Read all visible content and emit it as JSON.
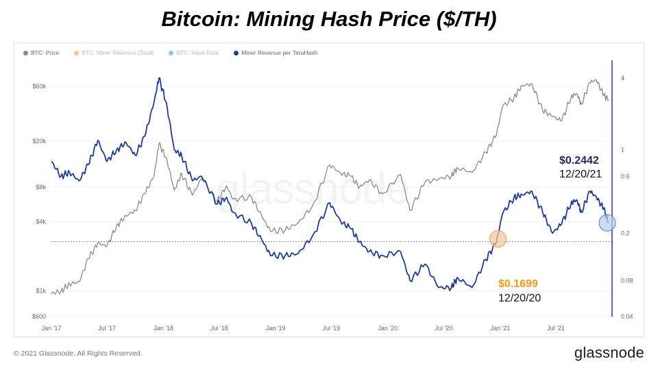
{
  "title": "Bitcoin: Mining Hash Price ($/TH)",
  "legend": [
    {
      "label": "BTC: Price",
      "color": "#8a8a8a",
      "faded": false
    },
    {
      "label": "BTC: Miner Revenue (Total)",
      "color": "#f7931a",
      "faded": true
    },
    {
      "label": "BTC: Hash Rate",
      "color": "#2f8ee6",
      "faded": true
    },
    {
      "label": "Miner Revenue per TeraHash",
      "color": "#1f3a93",
      "faded": false
    }
  ],
  "watermark": "glassnode",
  "copyright": "© 2021 Glassnode. All Rights Reserved.",
  "brand": "glassnode",
  "annotations": {
    "end_value": "$0.2442",
    "end_date": "12/20/21",
    "start_value": "$0.1699",
    "start_date": "12/20/20",
    "end_color": "#1f2a5a",
    "start_color": "#f29a1f"
  },
  "chart_data": {
    "type": "line",
    "x_ticks": [
      "Jan '17",
      "Jul '17",
      "Jan '18",
      "Jul '18",
      "Jan '19",
      "Jul '19",
      "Jan '20",
      "Jul '20",
      "Jan '21",
      "Jul '21"
    ],
    "x_range": [
      "2017-01-01",
      "2021-12-31"
    ],
    "y_left": {
      "scale": "log",
      "ticks": [
        "$60k",
        "$20k",
        "$8k",
        "$4k",
        "$1k",
        "$600"
      ],
      "range": [
        600,
        80000
      ]
    },
    "y_right": {
      "scale": "log",
      "ticks": [
        "4",
        "1",
        "0.6",
        "0.2",
        "0.08",
        "0.04"
      ],
      "range": [
        0.04,
        4.5
      ]
    },
    "reference_line_value": 0.1699,
    "series": [
      {
        "name": "BTC: Price",
        "axis": "left",
        "color": "#8a8a8a",
        "points": [
          [
            "2017-01-01",
            950
          ],
          [
            "2017-02-01",
            1000
          ],
          [
            "2017-03-01",
            1150
          ],
          [
            "2017-04-01",
            1200
          ],
          [
            "2017-05-01",
            1900
          ],
          [
            "2017-06-01",
            2600
          ],
          [
            "2017-07-01",
            2450
          ],
          [
            "2017-08-01",
            3700
          ],
          [
            "2017-09-01",
            4500
          ],
          [
            "2017-10-01",
            5000
          ],
          [
            "2017-11-01",
            7000
          ],
          [
            "2017-12-01",
            10000
          ],
          [
            "2017-12-17",
            19000
          ],
          [
            "2018-01-10",
            14500
          ],
          [
            "2018-02-05",
            7500
          ],
          [
            "2018-03-01",
            10500
          ],
          [
            "2018-04-05",
            6800
          ],
          [
            "2018-05-05",
            9500
          ],
          [
            "2018-06-25",
            6000
          ],
          [
            "2018-07-25",
            8200
          ],
          [
            "2018-08-15",
            6300
          ],
          [
            "2018-10-15",
            6500
          ],
          [
            "2018-11-20",
            4300
          ],
          [
            "2018-12-15",
            3300
          ],
          [
            "2019-02-01",
            3400
          ],
          [
            "2019-03-15",
            3900
          ],
          [
            "2019-05-01",
            5500
          ],
          [
            "2019-06-26",
            12500
          ],
          [
            "2019-08-01",
            10500
          ],
          [
            "2019-09-01",
            10000
          ],
          [
            "2019-10-01",
            8000
          ],
          [
            "2019-11-01",
            9200
          ],
          [
            "2019-12-15",
            7000
          ],
          [
            "2020-02-12",
            10300
          ],
          [
            "2020-03-13",
            5000
          ],
          [
            "2020-05-01",
            8800
          ],
          [
            "2020-06-15",
            9400
          ],
          [
            "2020-07-26",
            10000
          ],
          [
            "2020-08-15",
            11800
          ],
          [
            "2020-10-01",
            10700
          ],
          [
            "2020-11-15",
            16000
          ],
          [
            "2020-12-20",
            23000
          ],
          [
            "2021-01-08",
            40000
          ],
          [
            "2021-02-15",
            48000
          ],
          [
            "2021-03-13",
            61000
          ],
          [
            "2021-04-14",
            63000
          ],
          [
            "2021-05-19",
            37000
          ],
          [
            "2021-06-20",
            33000
          ],
          [
            "2021-07-20",
            30000
          ],
          [
            "2021-08-20",
            49000
          ],
          [
            "2021-09-07",
            52000
          ],
          [
            "2021-09-22",
            42000
          ],
          [
            "2021-10-20",
            65000
          ],
          [
            "2021-11-10",
            68000
          ],
          [
            "2021-12-04",
            50000
          ],
          [
            "2021-12-20",
            46000
          ]
        ]
      },
      {
        "name": "Miner Revenue per TeraHash",
        "axis": "right",
        "color": "#1f3a93",
        "points": [
          [
            "2017-01-01",
            0.8
          ],
          [
            "2017-02-01",
            0.6
          ],
          [
            "2017-03-01",
            0.65
          ],
          [
            "2017-04-01",
            0.55
          ],
          [
            "2017-05-01",
            0.75
          ],
          [
            "2017-06-01",
            1.2
          ],
          [
            "2017-07-01",
            0.8
          ],
          [
            "2017-08-01",
            1.0
          ],
          [
            "2017-09-01",
            1.15
          ],
          [
            "2017-10-01",
            0.9
          ],
          [
            "2017-11-01",
            1.3
          ],
          [
            "2017-12-01",
            2.5
          ],
          [
            "2017-12-17",
            4.0
          ],
          [
            "2018-01-10",
            2.5
          ],
          [
            "2018-02-05",
            1.0
          ],
          [
            "2018-03-01",
            0.9
          ],
          [
            "2018-04-05",
            0.55
          ],
          [
            "2018-05-05",
            0.6
          ],
          [
            "2018-06-25",
            0.35
          ],
          [
            "2018-07-25",
            0.4
          ],
          [
            "2018-08-15",
            0.3
          ],
          [
            "2018-10-15",
            0.24
          ],
          [
            "2018-11-20",
            0.17
          ],
          [
            "2018-12-15",
            0.13
          ],
          [
            "2019-02-01",
            0.13
          ],
          [
            "2019-03-15",
            0.135
          ],
          [
            "2019-05-01",
            0.19
          ],
          [
            "2019-06-26",
            0.36
          ],
          [
            "2019-08-01",
            0.25
          ],
          [
            "2019-09-01",
            0.22
          ],
          [
            "2019-10-01",
            0.17
          ],
          [
            "2019-11-01",
            0.14
          ],
          [
            "2019-12-15",
            0.13
          ],
          [
            "2020-02-12",
            0.14
          ],
          [
            "2020-03-13",
            0.08
          ],
          [
            "2020-05-01",
            0.11
          ],
          [
            "2020-06-15",
            0.07
          ],
          [
            "2020-07-26",
            0.07
          ],
          [
            "2020-08-15",
            0.085
          ],
          [
            "2020-10-01",
            0.07
          ],
          [
            "2020-11-15",
            0.12
          ],
          [
            "2020-12-20",
            0.1699
          ],
          [
            "2021-01-08",
            0.29
          ],
          [
            "2021-02-15",
            0.4
          ],
          [
            "2021-03-13",
            0.42
          ],
          [
            "2021-04-14",
            0.45
          ],
          [
            "2021-05-19",
            0.3
          ],
          [
            "2021-06-20",
            0.2
          ],
          [
            "2021-07-20",
            0.24
          ],
          [
            "2021-08-20",
            0.36
          ],
          [
            "2021-09-07",
            0.38
          ],
          [
            "2021-09-22",
            0.3
          ],
          [
            "2021-10-20",
            0.45
          ],
          [
            "2021-11-10",
            0.4
          ],
          [
            "2021-12-04",
            0.32
          ],
          [
            "2021-12-20",
            0.2442
          ]
        ]
      }
    ]
  }
}
